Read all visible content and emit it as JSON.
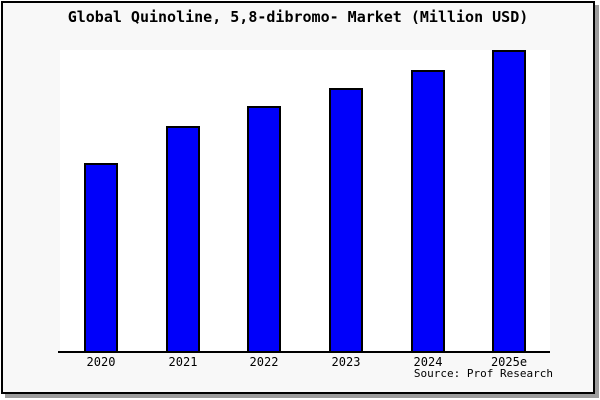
{
  "title": "Global Quinoline, 5,8-dibromo- Market (Million USD)",
  "source": "Source: Prof Research",
  "colors": {
    "bar_fill": "#0000fa",
    "bar_border": "#000000",
    "frame_background": "#f8f8f8",
    "plot_background": "#ffffff",
    "axis": "#000000",
    "frame_border": "#000000",
    "shadow": "#9c9c9c"
  },
  "chart_data": {
    "type": "bar",
    "title": "Global Quinoline, 5,8-dibromo- Market (Million USD)",
    "categories": [
      "2020",
      "2021",
      "2022",
      "2023",
      "2024",
      "2025e"
    ],
    "values": [
      62.6,
      74.9,
      81.5,
      87.3,
      93.5,
      100
    ],
    "xlabel": "",
    "ylabel": "",
    "ylim": [
      0,
      100
    ],
    "grid": false,
    "legend": false,
    "y_axis_tick_labels_visible": false,
    "value_basis": "relative scale, no y-axis labels shown; 2025e bar = 100 (plot max)",
    "annotations": [
      "Source: Prof Research"
    ]
  }
}
